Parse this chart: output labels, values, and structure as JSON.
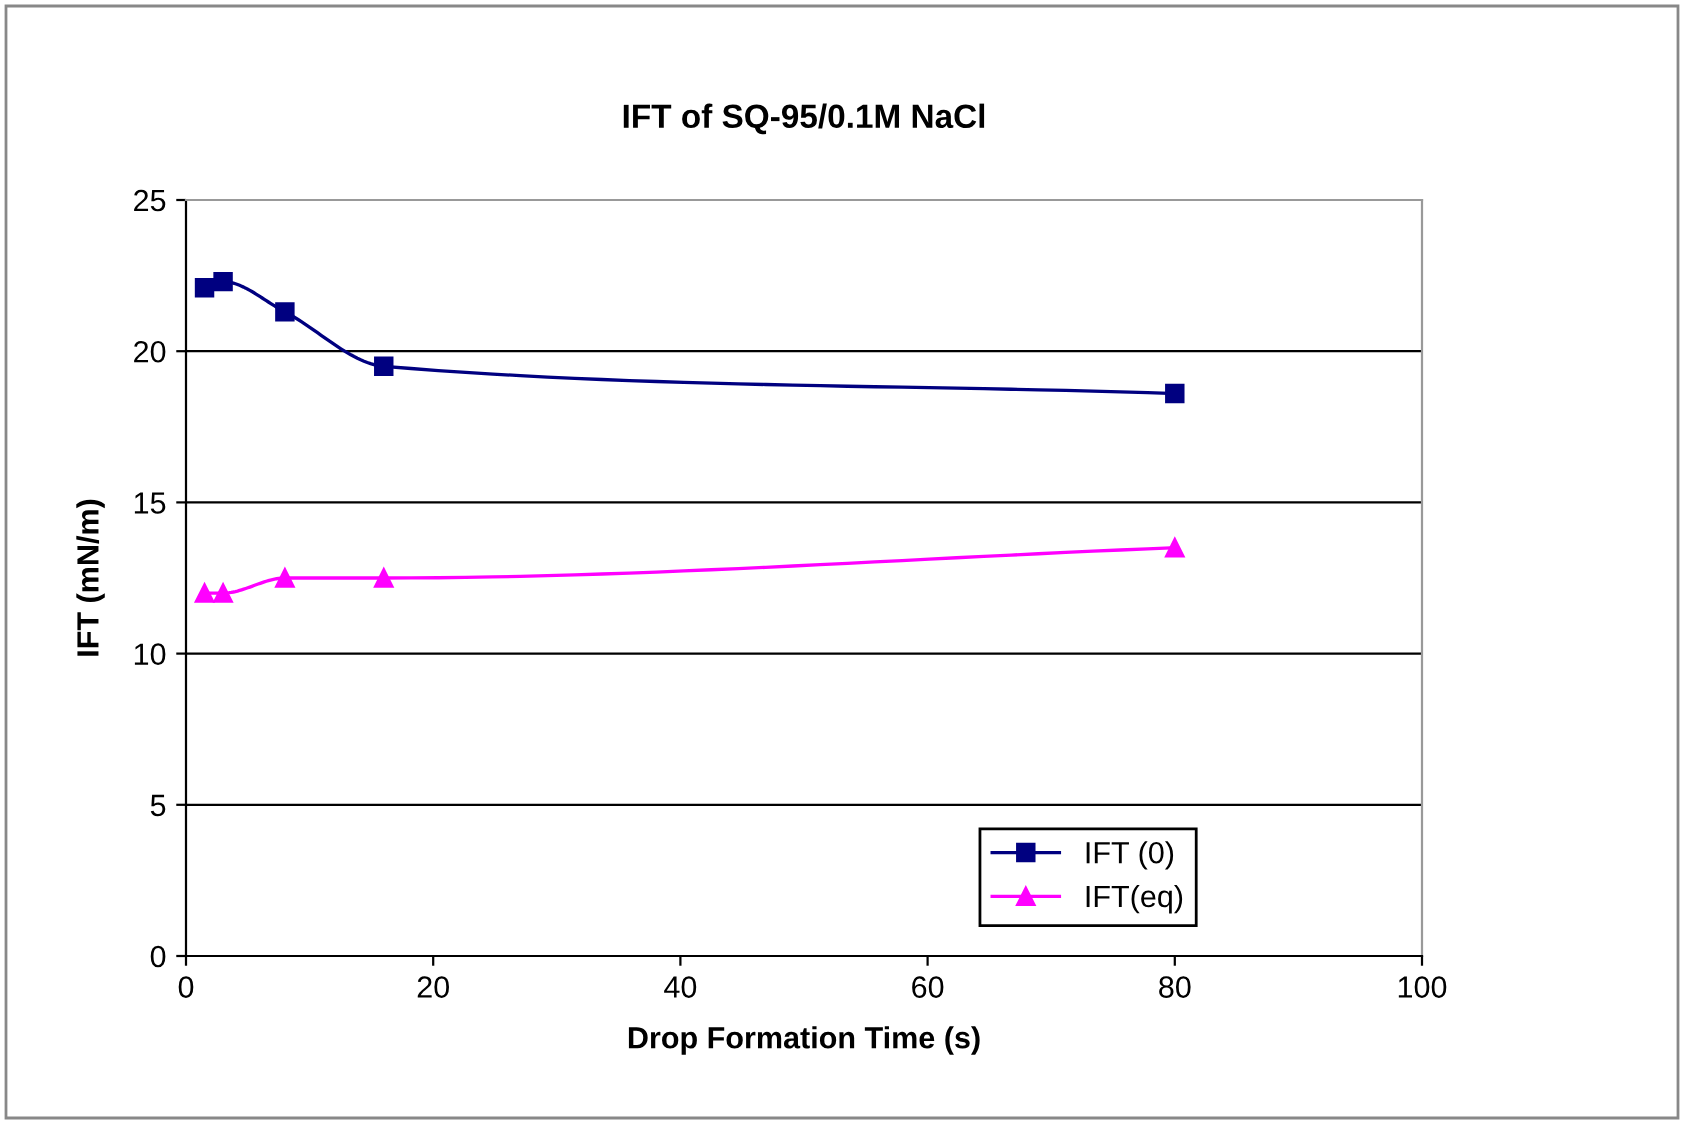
{
  "chart_data": {
    "type": "line",
    "title": "IFT of SQ-95/0.1M NaCl",
    "xlabel": "Drop Formation Time (s)",
    "ylabel": "IFT (mN/m)",
    "x": [
      1.5,
      3,
      8,
      16,
      80
    ],
    "series": [
      {
        "name": "IFT (0)",
        "color": "#000080",
        "marker": "square",
        "values": [
          22.1,
          22.3,
          21.3,
          19.5,
          18.6
        ]
      },
      {
        "name": "IFT(eq)",
        "color": "#ff00ff",
        "marker": "triangle",
        "values": [
          12.0,
          12.0,
          12.5,
          12.5,
          13.5
        ]
      }
    ],
    "xlim": [
      0,
      100
    ],
    "xticks": [
      0,
      20,
      40,
      60,
      80,
      100
    ],
    "ylim": [
      0,
      25
    ],
    "yticks": [
      0,
      5,
      10,
      15,
      20,
      25
    ],
    "grid": "y",
    "legend": "bottom right",
    "line_style": "solid"
  }
}
